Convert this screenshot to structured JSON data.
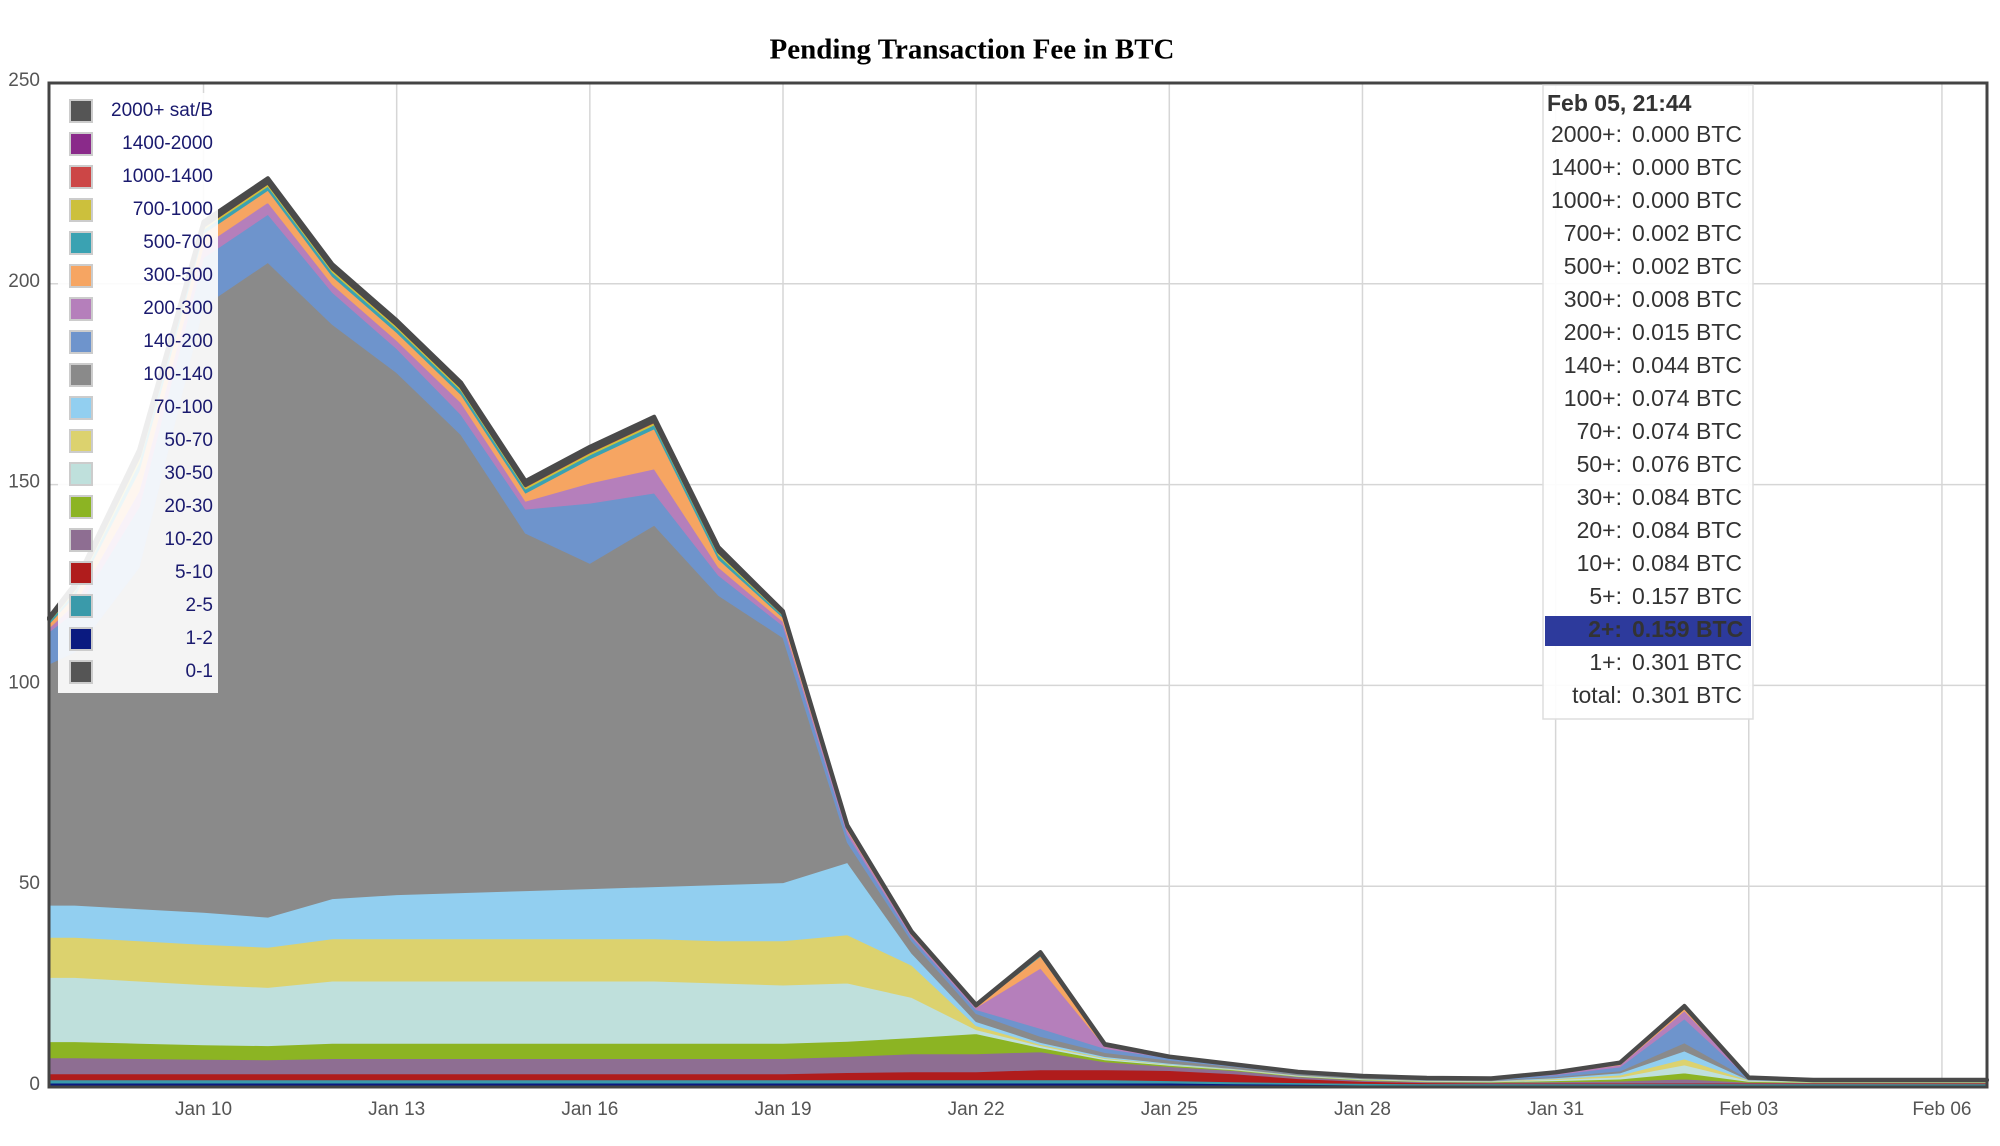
{
  "chart_data": {
    "type": "stacked_area",
    "title": "Pending Transaction Fee in BTC",
    "x": [
      7.6,
      8,
      9,
      10,
      11,
      12,
      13,
      14,
      15,
      16,
      17,
      18,
      19,
      20,
      21,
      22,
      23,
      24,
      25,
      26,
      27,
      28,
      29,
      30,
      31,
      32,
      33,
      34,
      35,
      36,
      37,
      37.7
    ],
    "xlim": [
      7.6,
      37.7
    ],
    "xticks": [
      {
        "value": 10,
        "label": "Jan 10"
      },
      {
        "value": 13,
        "label": "Jan 13"
      },
      {
        "value": 16,
        "label": "Jan 16"
      },
      {
        "value": 19,
        "label": "Jan 19"
      },
      {
        "value": 22,
        "label": "Jan 22"
      },
      {
        "value": 25,
        "label": "Jan 25"
      },
      {
        "value": 28,
        "label": "Jan 28"
      },
      {
        "value": 31,
        "label": "Jan 31"
      },
      {
        "value": 34,
        "label": "Feb 03"
      },
      {
        "value": 37,
        "label": "Feb 06"
      }
    ],
    "ylim": [
      0,
      250
    ],
    "yticks": [
      0,
      50,
      100,
      150,
      200,
      250
    ],
    "grid": true,
    "legend": "top-left",
    "series": [
      {
        "name": "0-1",
        "color": "#555555",
        "values": [
          0.5,
          0.5,
          0.5,
          0.5,
          0.5,
          0.5,
          0.5,
          0.5,
          0.5,
          0.5,
          0.5,
          0.5,
          0.5,
          0.5,
          0.5,
          0.5,
          0.5,
          0.5,
          0.5,
          0.5,
          0.5,
          0.3,
          0.3,
          0.3,
          0.3,
          0.3,
          0.3,
          0.3,
          0.3,
          0.3,
          0.3,
          0.3
        ]
      },
      {
        "name": "1-2",
        "color": "#0a1a80",
        "values": [
          0.5,
          0.5,
          0.5,
          0.5,
          0.5,
          0.5,
          0.5,
          0.5,
          0.5,
          0.5,
          0.5,
          0.5,
          0.5,
          0.5,
          0.5,
          0.5,
          0.5,
          0.5,
          0.5,
          0.3,
          0.2,
          0.2,
          0.2,
          0.2,
          0.2,
          0.2,
          0.2,
          0.2,
          0.2,
          0.2,
          0.2,
          0.2
        ]
      },
      {
        "name": "2-5",
        "color": "#3a9aaa",
        "values": [
          0.8,
          0.8,
          0.8,
          0.8,
          0.8,
          0.8,
          0.8,
          0.8,
          0.8,
          0.8,
          0.8,
          0.8,
          0.8,
          0.8,
          0.8,
          0.8,
          0.8,
          0.8,
          0.6,
          0.5,
          0.4,
          0.4,
          0.3,
          0.3,
          0.3,
          0.3,
          0.3,
          0.3,
          0.3,
          0.3,
          0.3,
          0.3
        ]
      },
      {
        "name": "5-10",
        "color": "#b01c1c",
        "values": [
          1.5,
          1.5,
          1.5,
          1.5,
          1.5,
          1.5,
          1.5,
          1.5,
          1.5,
          1.5,
          1.5,
          1.5,
          1.5,
          1.8,
          2,
          2,
          2.5,
          2.5,
          2.5,
          2,
          1,
          0.5,
          0.3,
          0.2,
          0.2,
          0.2,
          0.2,
          0.2,
          0.2,
          0.2,
          0.2,
          0.2
        ]
      },
      {
        "name": "10-20",
        "color": "#8e6e92",
        "values": [
          4,
          4,
          3.8,
          3.6,
          3.5,
          3.8,
          3.8,
          3.8,
          3.8,
          3.8,
          3.8,
          3.8,
          3.8,
          4,
          4.5,
          4.5,
          4.5,
          2,
          1,
          0.8,
          0.5,
          0.3,
          0.2,
          0.2,
          0.3,
          0.5,
          1,
          0.2,
          0.1,
          0.1,
          0.1,
          0.1
        ]
      },
      {
        "name": "20-30",
        "color": "#8cb423",
        "values": [
          4,
          4,
          3.8,
          3.6,
          3.5,
          3.8,
          3.8,
          3.8,
          3.8,
          3.8,
          3.8,
          3.8,
          3.8,
          3.8,
          4,
          5,
          1,
          0.5,
          0.3,
          0.2,
          0.1,
          0.1,
          0.1,
          0.1,
          0.3,
          0.5,
          1.5,
          0.2,
          0.1,
          0.1,
          0.1,
          0.1
        ]
      },
      {
        "name": "30-50",
        "color": "#bfe0dc",
        "values": [
          16,
          16,
          15.5,
          15,
          14.5,
          15.5,
          15.5,
          15.5,
          15.5,
          15.5,
          15.5,
          15,
          14.5,
          14.5,
          10,
          1,
          0.5,
          0.3,
          0.2,
          0.1,
          0.1,
          0.1,
          0.1,
          0.1,
          0.3,
          0.5,
          2,
          0.2,
          0.1,
          0.1,
          0.1,
          0.1
        ]
      },
      {
        "name": "50-70",
        "color": "#dcd26e",
        "values": [
          10,
          10,
          10,
          10,
          10,
          10.5,
          10.5,
          10.5,
          10.5,
          10.5,
          10.5,
          10.5,
          11,
          12,
          8,
          1,
          0.3,
          0.2,
          0.1,
          0.1,
          0.1,
          0.1,
          0.1,
          0.1,
          0.2,
          0.5,
          1.5,
          0.1,
          0.1,
          0.1,
          0.1,
          0.1
        ]
      },
      {
        "name": "70-100",
        "color": "#92cff0",
        "values": [
          8,
          8,
          8,
          8,
          7.5,
          10,
          11,
          11.5,
          12,
          12.5,
          13,
          14,
          14.5,
          18,
          3,
          1,
          0.5,
          0.3,
          0.2,
          0.1,
          0.1,
          0.1,
          0.1,
          0.1,
          0.2,
          0.5,
          2,
          0.1,
          0.1,
          0.1,
          0.1,
          0.1
        ]
      },
      {
        "name": "100-140",
        "color": "#8a8a8a",
        "values": [
          60,
          63,
          85,
          151,
          163,
          143,
          130,
          114,
          89,
          81,
          90,
          72,
          61,
          5,
          3,
          2,
          1.5,
          1,
          0.8,
          0.5,
          0.3,
          0.3,
          0.2,
          0.2,
          0.3,
          0.5,
          2,
          0.2,
          0.1,
          0.1,
          0.1,
          0.1
        ]
      },
      {
        "name": "140-200",
        "color": "#6e94cc",
        "values": [
          8,
          10,
          15,
          12,
          12,
          8,
          6,
          5,
          6,
          15,
          8,
          5,
          3,
          2,
          1,
          1,
          2,
          1,
          0.5,
          0.3,
          0.2,
          0.2,
          0.2,
          0.2,
          0.5,
          1,
          6,
          0.2,
          0.1,
          0.1,
          0.1,
          0.1
        ]
      },
      {
        "name": "200-300",
        "color": "#b57fbb",
        "values": [
          1,
          2,
          4,
          3,
          3,
          2,
          2,
          3,
          2,
          5,
          6,
          2,
          1,
          1,
          0.5,
          0.5,
          15,
          0.5,
          0.2,
          0.1,
          0.1,
          0.1,
          0.1,
          0.1,
          0.3,
          0.5,
          2,
          0.1,
          0,
          0,
          0,
          0
        ]
      },
      {
        "name": "300-500",
        "color": "#f6a562",
        "values": [
          1,
          2,
          5,
          3,
          3,
          2,
          2,
          2,
          2,
          6,
          10,
          2,
          1,
          0.5,
          0.5,
          0.3,
          3,
          0.2,
          0.1,
          0.1,
          0.1,
          0,
          0,
          0,
          0.2,
          0.5,
          1,
          0,
          0,
          0,
          0,
          0
        ]
      },
      {
        "name": "500-700",
        "color": "#3aa2b2",
        "values": [
          0.5,
          1,
          2,
          1,
          1,
          1,
          1,
          1,
          1,
          1,
          1,
          1,
          0.5,
          0.2,
          0.1,
          0.1,
          0.5,
          0.1,
          0,
          0,
          0,
          0,
          0,
          0,
          0,
          0,
          0,
          0,
          0,
          0,
          0,
          0
        ]
      },
      {
        "name": "700-1000",
        "color": "#ccc03c",
        "values": [
          0.3,
          0.5,
          1,
          0.5,
          0.5,
          0.5,
          0.5,
          0.5,
          0.5,
          0.5,
          0.5,
          0.5,
          0.3,
          0.1,
          0.1,
          0.1,
          0.2,
          0.1,
          0,
          0,
          0,
          0,
          0,
          0,
          0,
          0,
          0,
          0,
          0,
          0,
          0,
          0
        ]
      },
      {
        "name": "1000-1400",
        "color": "#cc4646",
        "values": [
          0.2,
          0.3,
          0.5,
          0.3,
          0.3,
          0.3,
          0.3,
          0.3,
          0.3,
          0.3,
          0.3,
          0.3,
          0.2,
          0.1,
          0,
          0,
          0,
          0,
          0,
          0,
          0,
          0,
          0,
          0,
          0,
          0,
          0,
          0,
          0,
          0,
          0,
          0
        ]
      },
      {
        "name": "1400-2000",
        "color": "#8a2a8a",
        "values": [
          0.1,
          0.2,
          0.3,
          0.2,
          0.2,
          0.2,
          0.2,
          0.2,
          0.2,
          0.2,
          0.2,
          0.2,
          0.1,
          0.1,
          0,
          0,
          0,
          0,
          0,
          0,
          0,
          0,
          0,
          0,
          0,
          0,
          0,
          0,
          0,
          0,
          0,
          0
        ]
      },
      {
        "name": "2000+ sat/B",
        "color": "#555555",
        "values": [
          0.5,
          1,
          1.5,
          1,
          1,
          1,
          1,
          1,
          1,
          1,
          1,
          1,
          0.5,
          0.3,
          0.2,
          0.2,
          0.3,
          0.2,
          0.1,
          0.1,
          0.1,
          0.1,
          0.1,
          0.1,
          0.1,
          0.1,
          0.2,
          0.1,
          0.1,
          0.1,
          0.1,
          0.1
        ]
      }
    ]
  },
  "tooltip": {
    "title": "Feb 05, 21:44",
    "highlight": 15,
    "rows": [
      {
        "label": "2000+:",
        "value": "0.000 BTC"
      },
      {
        "label": "1400+:",
        "value": "0.000 BTC"
      },
      {
        "label": "1000+:",
        "value": "0.000 BTC"
      },
      {
        "label": "700+:",
        "value": "0.002 BTC"
      },
      {
        "label": "500+:",
        "value": "0.002 BTC"
      },
      {
        "label": "300+:",
        "value": "0.008 BTC"
      },
      {
        "label": "200+:",
        "value": "0.015 BTC"
      },
      {
        "label": "140+:",
        "value": "0.044 BTC"
      },
      {
        "label": "100+:",
        "value": "0.074 BTC"
      },
      {
        "label": "70+:",
        "value": "0.074 BTC"
      },
      {
        "label": "50+:",
        "value": "0.076 BTC"
      },
      {
        "label": "30+:",
        "value": "0.084 BTC"
      },
      {
        "label": "20+:",
        "value": "0.084 BTC"
      },
      {
        "label": "10+:",
        "value": "0.084 BTC"
      },
      {
        "label": "5+:",
        "value": "0.157 BTC"
      },
      {
        "label": "2+:",
        "value": "0.159 BTC"
      },
      {
        "label": "1+:",
        "value": "0.301 BTC"
      },
      {
        "label": "total:",
        "value": "0.301 BTC"
      }
    ]
  }
}
